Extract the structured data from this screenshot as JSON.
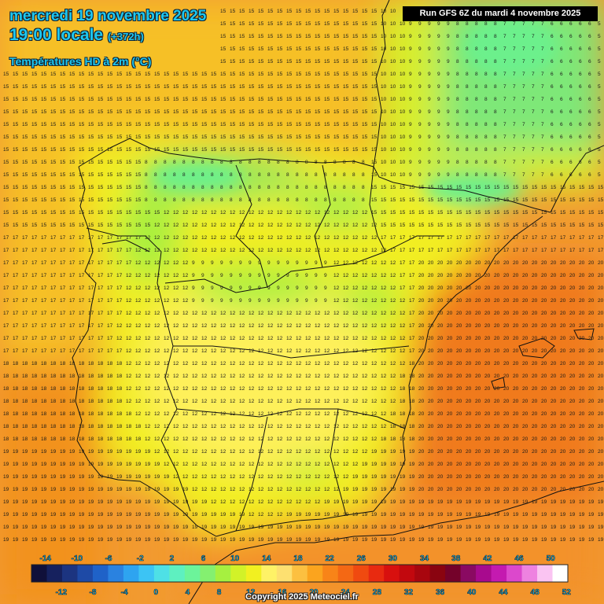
{
  "header": {
    "date": "mercredi 19 novembre 2025",
    "time": "19:00 locale",
    "offset": "(+372h)",
    "parameter": "Températures HD à 2m (°C)"
  },
  "run_info": "Run GFS 6Z du mardi 4 novembre 2025",
  "copyright": "Copyright 2025 Meteociel.fr",
  "legend": {
    "values": [
      -14,
      -12,
      -10,
      -8,
      -6,
      -4,
      -2,
      0,
      2,
      4,
      6,
      8,
      10,
      12,
      14,
      16,
      18,
      20,
      22,
      24,
      26,
      28,
      30,
      32,
      34,
      36,
      38,
      40,
      42,
      44,
      46,
      48,
      50,
      52
    ],
    "labels_top": [
      -14,
      -10,
      -6,
      -2,
      2,
      6,
      10,
      14,
      18,
      22,
      26,
      30,
      34,
      38,
      42,
      46,
      50
    ],
    "labels_bottom": [
      -12,
      -8,
      -4,
      0,
      4,
      8,
      12,
      16,
      20,
      24,
      28,
      32,
      36,
      40,
      44,
      48,
      52
    ],
    "colors": [
      "#10103a",
      "#16215e",
      "#1c3480",
      "#1e4aa6",
      "#1f62c8",
      "#2a82e0",
      "#2ea4f0",
      "#3cc4f4",
      "#4ee0e6",
      "#5ef0c0",
      "#6cf49a",
      "#84f070",
      "#a6f040",
      "#d2f228",
      "#f2f020",
      "#fef266",
      "#fde070",
      "#fcc040",
      "#fba41e",
      "#f88418",
      "#f46814",
      "#f04a10",
      "#e82a10",
      "#d8100e",
      "#c2080e",
      "#a8060e",
      "#8a0410",
      "#74022a",
      "#8a0a62",
      "#a80a8e",
      "#c41ab0",
      "#dc48cc",
      "#ee82e0",
      "#fac4f2",
      "#ffffff"
    ]
  }
}
